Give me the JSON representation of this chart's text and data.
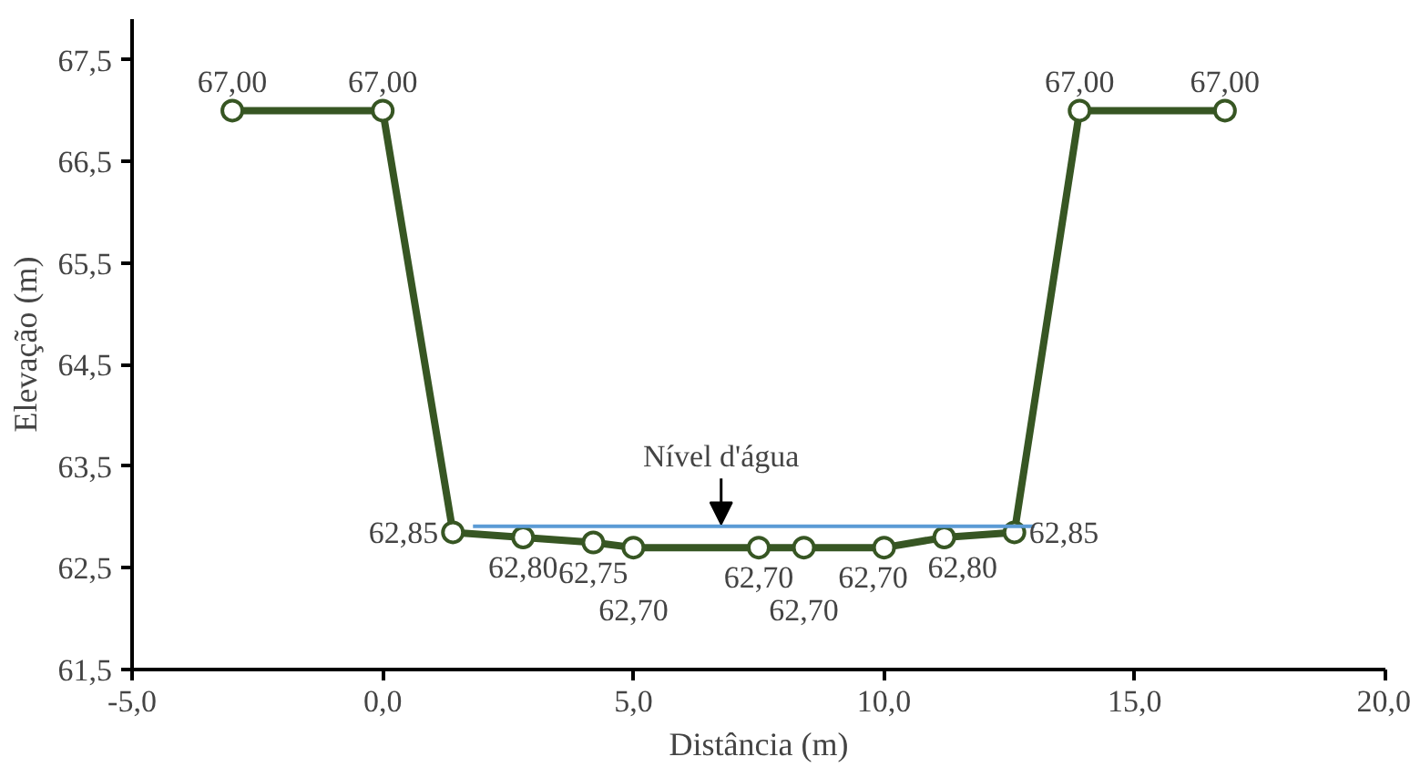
{
  "chart_data": {
    "type": "line",
    "xlabel": "Distância (m)",
    "ylabel": "Elevação (m)",
    "xlim": [
      -5,
      20
    ],
    "ylim": [
      61.5,
      67.9
    ],
    "xticks": [
      {
        "value": -5,
        "label": "-5,0"
      },
      {
        "value": 0,
        "label": "0,0"
      },
      {
        "value": 5,
        "label": "5,0"
      },
      {
        "value": 10,
        "label": "10,0"
      },
      {
        "value": 15,
        "label": "15,0"
      },
      {
        "value": 20,
        "label": "20,0"
      }
    ],
    "yticks": [
      {
        "value": 61.5,
        "label": "61,5"
      },
      {
        "value": 62.5,
        "label": "62,5"
      },
      {
        "value": 63.5,
        "label": "63,5"
      },
      {
        "value": 64.5,
        "label": "64,5"
      },
      {
        "value": 65.5,
        "label": "65,5"
      },
      {
        "value": 66.5,
        "label": "66,5"
      },
      {
        "value": 67.5,
        "label": "67,5"
      }
    ],
    "grid": false,
    "marker": "circle",
    "line_style": "solid",
    "series": [
      {
        "color": "#375623",
        "x": [
          -3,
          0,
          1.4,
          2.8,
          4.2,
          5.0,
          7.5,
          8.4,
          10.0,
          11.2,
          12.6,
          13.9,
          16.8
        ],
        "values": [
          67.0,
          67.0,
          62.85,
          62.8,
          62.75,
          62.7,
          62.7,
          62.7,
          62.7,
          62.8,
          62.85,
          67.0,
          67.0
        ],
        "value_labels": [
          "67,00",
          "67,00",
          "62,85",
          "62,80",
          "62,75",
          "62,70",
          "62,70",
          "62,70",
          "62,70",
          "62,80",
          "62,85",
          "67,00",
          "67,00"
        ]
      },
      {
        "type": "line",
        "color": "#5b9bd5",
        "marker": "none",
        "x": [
          1.8,
          13.0
        ],
        "values": [
          62.91,
          62.91
        ]
      }
    ],
    "annotations": [
      {
        "text": "Nível d'água",
        "x": 6.75,
        "y": 62.93
      }
    ]
  }
}
